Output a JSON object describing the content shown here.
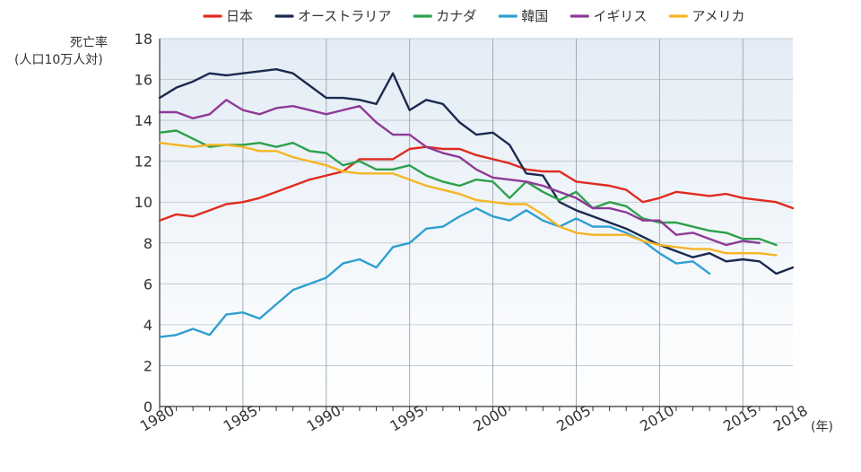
{
  "chart_data": {
    "type": "line",
    "ylabel_lines": [
      "死亡率",
      "(人口10万人対)"
    ],
    "xlabel": "(年)",
    "xlim": [
      1980,
      2018
    ],
    "ylim": [
      0,
      18
    ],
    "yticks": [
      0,
      2,
      4,
      6,
      8,
      10,
      12,
      14,
      16,
      18
    ],
    "xticks": [
      1980,
      1985,
      1990,
      1995,
      2000,
      2005,
      2010,
      2015,
      2018
    ],
    "grid": true,
    "legend_position": "top",
    "series": [
      {
        "name": "日本",
        "color": "#e02b20",
        "start_year": 1980,
        "values": [
          9.1,
          9.4,
          9.3,
          9.6,
          9.9,
          10.0,
          10.2,
          10.5,
          10.8,
          11.1,
          11.3,
          11.5,
          12.1,
          12.1,
          12.1,
          12.6,
          12.7,
          12.6,
          12.6,
          12.3,
          12.1,
          11.9,
          11.6,
          11.5,
          11.5,
          11.0,
          10.9,
          10.8,
          10.6,
          10.0,
          10.2,
          10.5,
          10.4,
          10.3,
          10.4,
          10.2,
          10.1,
          10.0,
          9.7
        ]
      },
      {
        "name": "オーストラリア",
        "color": "#1a2a4e",
        "start_year": 1980,
        "values": [
          15.1,
          15.6,
          15.9,
          16.3,
          16.2,
          16.3,
          16.4,
          16.5,
          16.3,
          15.7,
          15.1,
          15.1,
          15.0,
          14.8,
          16.3,
          14.5,
          15.0,
          14.8,
          13.9,
          13.3,
          13.4,
          12.8,
          11.4,
          11.3,
          10.0,
          9.6,
          9.3,
          9.0,
          8.7,
          8.3,
          7.9,
          7.6,
          7.3,
          7.5,
          7.1,
          7.2,
          7.1,
          6.5,
          6.8
        ]
      },
      {
        "name": "カナダ",
        "color": "#2ea04b",
        "start_year": 1980,
        "values": [
          13.4,
          13.5,
          13.1,
          12.7,
          12.8,
          12.8,
          12.9,
          12.7,
          12.9,
          12.5,
          12.4,
          11.8,
          12.0,
          11.6,
          11.6,
          11.8,
          11.3,
          11.0,
          10.8,
          11.1,
          11.0,
          10.2,
          11.0,
          10.5,
          10.1,
          10.5,
          9.7,
          10.0,
          9.8,
          9.2,
          9.0,
          9.0,
          8.8,
          8.6,
          8.5,
          8.2,
          8.2,
          7.9
        ]
      },
      {
        "name": "韓国",
        "color": "#2f9fd1",
        "start_year": 1980,
        "values": [
          3.4,
          3.5,
          3.8,
          3.5,
          4.5,
          4.6,
          4.3,
          5.0,
          5.7,
          6.0,
          6.3,
          7.0,
          7.2,
          6.8,
          7.8,
          8.0,
          8.7,
          8.8,
          9.3,
          9.7,
          9.3,
          9.1,
          9.6,
          9.1,
          8.8,
          9.2,
          8.8,
          8.8,
          8.5,
          8.1,
          7.5,
          7.0,
          7.1,
          6.5
        ]
      },
      {
        "name": "イギリス",
        "color": "#8e3a96",
        "start_year": 1980,
        "values": [
          14.4,
          14.4,
          14.1,
          14.3,
          15.0,
          14.5,
          14.3,
          14.6,
          14.7,
          14.5,
          14.3,
          14.5,
          14.7,
          13.9,
          13.3,
          13.3,
          12.7,
          12.4,
          12.2,
          11.6,
          11.2,
          11.1,
          11.0,
          10.8,
          10.5,
          10.2,
          9.7,
          9.7,
          9.5,
          9.1,
          9.1,
          8.4,
          8.5,
          8.2,
          7.9,
          8.1,
          8.0
        ]
      },
      {
        "name": "アメリカ",
        "color": "#f5b524",
        "start_year": 1980,
        "values": [
          12.9,
          12.8,
          12.7,
          12.8,
          12.8,
          12.7,
          12.5,
          12.5,
          12.2,
          12.0,
          11.8,
          11.5,
          11.4,
          11.4,
          11.4,
          11.1,
          10.8,
          10.6,
          10.4,
          10.1,
          10.0,
          9.9,
          9.9,
          9.4,
          8.8,
          8.5,
          8.4,
          8.4,
          8.4,
          8.1,
          7.9,
          7.8,
          7.7,
          7.7,
          7.5,
          7.5,
          7.5,
          7.4
        ]
      }
    ]
  }
}
